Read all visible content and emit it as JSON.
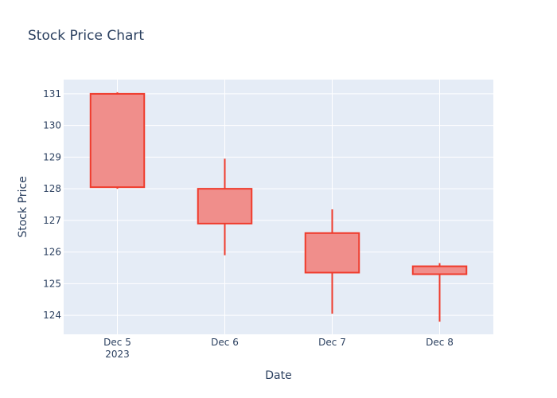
{
  "chart_data": {
    "type": "candlestick",
    "title": "Stock Price Chart",
    "xlabel": "Date",
    "ylabel": "Stock Price",
    "x_ticks": [
      "Dec 5",
      "Dec 6",
      "Dec 7",
      "Dec 8"
    ],
    "x_tick_year": "2023",
    "y_ticks": [
      124,
      125,
      126,
      127,
      128,
      129,
      130,
      131
    ],
    "ylim": [
      123.4,
      131.45
    ],
    "grid": true,
    "candles": [
      {
        "date": "Dec 5",
        "open": 131.0,
        "high": 131.05,
        "low": 128.0,
        "close": 128.05
      },
      {
        "date": "Dec 6",
        "open": 128.0,
        "high": 128.95,
        "low": 125.9,
        "close": 126.9
      },
      {
        "date": "Dec 7",
        "open": 126.6,
        "high": 127.35,
        "low": 124.05,
        "close": 125.35
      },
      {
        "date": "Dec 8",
        "open": 125.55,
        "high": 125.65,
        "low": 123.8,
        "close": 125.3
      }
    ],
    "colors": {
      "plot_bg": "#E5ECF6",
      "grid": "#ffffff",
      "decreasing_line": "#EF3B2C",
      "decreasing_fill": "#F08E8B",
      "text": "#2a3f5f"
    }
  }
}
